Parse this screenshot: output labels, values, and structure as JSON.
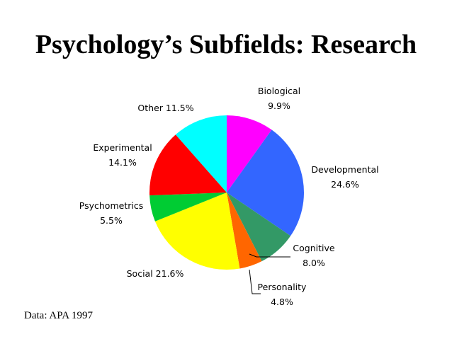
{
  "slide": {
    "title": "Psychology’s Subfields: Research",
    "source": "Data: APA 1997"
  },
  "chart_data": {
    "type": "pie",
    "title": "",
    "start_angle_deg": 0,
    "direction": "clockwise",
    "slices": [
      {
        "name": "Biological",
        "value": 9.9,
        "label": "9.9%",
        "color": "#ff00ff"
      },
      {
        "name": "Developmental",
        "value": 24.6,
        "label": "24.6%",
        "color": "#3366ff"
      },
      {
        "name": "Cognitive",
        "value": 8.0,
        "label": "8.0%",
        "color": "#339966"
      },
      {
        "name": "Personality",
        "value": 4.8,
        "label": "4.8%",
        "color": "#ff6600"
      },
      {
        "name": "Social",
        "value": 21.6,
        "label": "21.6%",
        "color": "#ffff00"
      },
      {
        "name": "Psychometrics",
        "value": 5.5,
        "label": "5.5%",
        "color": "#00cc33"
      },
      {
        "name": "Experimental",
        "value": 14.1,
        "label": "14.1%",
        "color": "#ff0000"
      },
      {
        "name": "Other",
        "value": 11.5,
        "label": "11.5%",
        "color": "#00ffff"
      }
    ]
  }
}
